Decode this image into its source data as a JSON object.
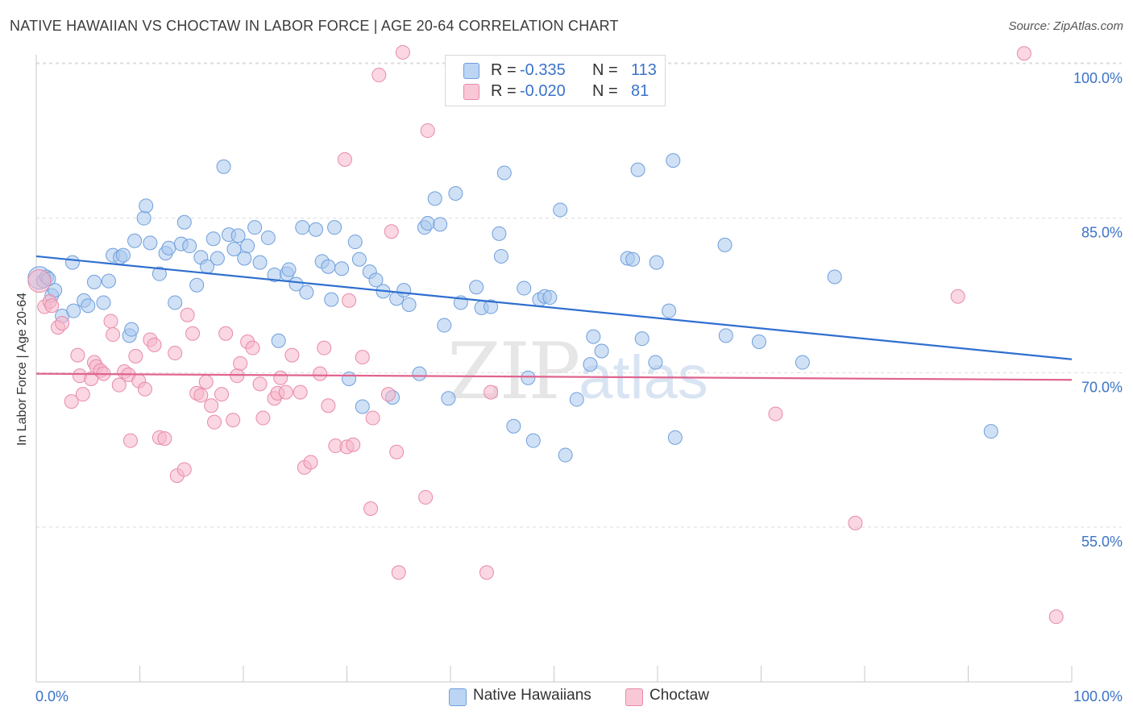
{
  "title": "NATIVE HAWAIIAN VS CHOCTAW IN LABOR FORCE | AGE 20-64 CORRELATION CHART",
  "source": "Source: ZipAtlas.com",
  "watermark": {
    "zip": "ZIP",
    "atlas": "atlas"
  },
  "legend_top": {
    "rows": [
      {
        "r_label": "R =",
        "r_value": "-0.335",
        "n_label": "N =",
        "n_value": "113"
      },
      {
        "r_label": "R =",
        "r_value": "-0.020",
        "n_label": "N =",
        "n_value": "81"
      }
    ]
  },
  "legend_bottom": {
    "items": [
      "Native Hawaiians",
      "Choctaw"
    ]
  },
  "colors": {
    "blue_fill": "#a9c8ef",
    "blue_stroke": "#6f9fdc",
    "blue_line": "#2f6fd0",
    "pink_fill": "#f5b7cb",
    "pink_stroke": "#e88aa8",
    "pink_line": "#e0648e",
    "tick_label": "#3b73c8",
    "grid": "#dcdcdc"
  },
  "chart_data": {
    "type": "scatter",
    "title": "NATIVE HAWAIIAN VS CHOCTAW IN LABOR FORCE | AGE 20-64 CORRELATION CHART",
    "xlabel": "",
    "ylabel": "In Labor Force | Age 20-64",
    "xlim": [
      0,
      100
    ],
    "ylim": [
      40,
      102
    ],
    "x_tick_labels": [
      "0.0%",
      "100.0%"
    ],
    "y_ticks": [
      55,
      70,
      85,
      100
    ],
    "y_tick_labels": [
      "55.0%",
      "70.0%",
      "85.0%",
      "100.0%"
    ],
    "grid": true,
    "legend_position": "bottom",
    "series": [
      {
        "name": "Native Hawaiians",
        "r": -0.335,
        "n": 113,
        "trend": {
          "x": [
            0,
            100
          ],
          "y": [
            81.3,
            71.3
          ]
        },
        "points": [
          [
            0.3,
            79.2
          ],
          [
            0.7,
            78.9
          ],
          [
            1.0,
            79.3
          ],
          [
            1.2,
            79.1
          ],
          [
            1.5,
            77.5
          ],
          [
            1.8,
            78.0
          ],
          [
            2.5,
            75.5
          ],
          [
            3.5,
            80.7
          ],
          [
            3.6,
            76.0
          ],
          [
            4.6,
            77.0
          ],
          [
            5.0,
            76.5
          ],
          [
            5.6,
            78.8
          ],
          [
            6.5,
            76.8
          ],
          [
            7.0,
            78.9
          ],
          [
            7.4,
            81.4
          ],
          [
            8.1,
            81.2
          ],
          [
            8.4,
            81.4
          ],
          [
            9.0,
            73.6
          ],
          [
            9.2,
            74.2
          ],
          [
            9.5,
            82.8
          ],
          [
            10.4,
            85.0
          ],
          [
            10.6,
            86.2
          ],
          [
            11.0,
            82.6
          ],
          [
            11.9,
            79.6
          ],
          [
            12.5,
            81.6
          ],
          [
            12.8,
            82.1
          ],
          [
            13.4,
            76.8
          ],
          [
            14.0,
            82.5
          ],
          [
            14.3,
            84.6
          ],
          [
            14.8,
            82.3
          ],
          [
            15.5,
            78.5
          ],
          [
            15.9,
            81.2
          ],
          [
            16.5,
            80.3
          ],
          [
            17.1,
            83.0
          ],
          [
            17.5,
            81.1
          ],
          [
            18.1,
            90.0
          ],
          [
            18.6,
            83.4
          ],
          [
            19.1,
            82.0
          ],
          [
            19.5,
            83.3
          ],
          [
            20.1,
            81.1
          ],
          [
            20.4,
            82.3
          ],
          [
            21.1,
            84.1
          ],
          [
            21.6,
            80.7
          ],
          [
            22.4,
            83.1
          ],
          [
            23.0,
            79.5
          ],
          [
            23.4,
            73.1
          ],
          [
            24.2,
            79.6
          ],
          [
            24.4,
            80.0
          ],
          [
            25.1,
            78.6
          ],
          [
            25.7,
            84.1
          ],
          [
            26.1,
            77.8
          ],
          [
            27.0,
            83.9
          ],
          [
            27.6,
            80.8
          ],
          [
            28.2,
            80.3
          ],
          [
            28.5,
            77.1
          ],
          [
            28.8,
            84.1
          ],
          [
            29.5,
            80.1
          ],
          [
            30.2,
            69.4
          ],
          [
            30.8,
            82.7
          ],
          [
            31.2,
            81.0
          ],
          [
            31.5,
            66.7
          ],
          [
            32.2,
            79.8
          ],
          [
            32.8,
            79.0
          ],
          [
            33.5,
            77.9
          ],
          [
            34.4,
            67.6
          ],
          [
            34.8,
            77.2
          ],
          [
            35.5,
            78.0
          ],
          [
            36.0,
            76.6
          ],
          [
            37.0,
            69.9
          ],
          [
            37.5,
            84.1
          ],
          [
            37.8,
            84.5
          ],
          [
            38.5,
            86.9
          ],
          [
            39.0,
            84.4
          ],
          [
            39.4,
            74.6
          ],
          [
            39.8,
            67.5
          ],
          [
            40.5,
            87.4
          ],
          [
            41.0,
            76.8
          ],
          [
            42.5,
            78.3
          ],
          [
            43.0,
            76.3
          ],
          [
            43.9,
            76.4
          ],
          [
            44.7,
            83.5
          ],
          [
            44.9,
            81.3
          ],
          [
            45.2,
            89.4
          ],
          [
            46.1,
            64.8
          ],
          [
            47.1,
            78.2
          ],
          [
            47.5,
            69.5
          ],
          [
            48.0,
            63.4
          ],
          [
            48.6,
            77.1
          ],
          [
            49.1,
            77.4
          ],
          [
            49.6,
            77.3
          ],
          [
            50.6,
            85.8
          ],
          [
            51.1,
            62.0
          ],
          [
            52.2,
            67.4
          ],
          [
            53.5,
            70.8
          ],
          [
            53.8,
            73.5
          ],
          [
            54.6,
            72.1
          ],
          [
            57.1,
            81.1
          ],
          [
            57.6,
            81.0
          ],
          [
            58.1,
            89.7
          ],
          [
            58.5,
            73.3
          ],
          [
            59.8,
            71.0
          ],
          [
            59.9,
            80.7
          ],
          [
            61.1,
            76.0
          ],
          [
            61.5,
            90.6
          ],
          [
            61.7,
            63.7
          ],
          [
            66.5,
            82.4
          ],
          [
            66.6,
            73.6
          ],
          [
            69.8,
            73.0
          ],
          [
            74.0,
            71.0
          ],
          [
            77.1,
            79.3
          ],
          [
            92.2,
            64.3
          ]
        ]
      },
      {
        "name": "Choctaw",
        "r": -0.02,
        "n": 81,
        "trend": {
          "x": [
            0,
            100
          ],
          "y": [
            69.9,
            69.3
          ]
        },
        "points": [
          [
            0.3,
            78.9
          ],
          [
            0.8,
            76.4
          ],
          [
            1.3,
            76.9
          ],
          [
            1.5,
            76.5
          ],
          [
            2.1,
            74.4
          ],
          [
            2.5,
            74.8
          ],
          [
            3.4,
            67.2
          ],
          [
            4.0,
            71.7
          ],
          [
            4.2,
            69.7
          ],
          [
            4.5,
            67.9
          ],
          [
            5.3,
            69.4
          ],
          [
            5.6,
            71.0
          ],
          [
            5.8,
            70.6
          ],
          [
            6.2,
            70.2
          ],
          [
            6.5,
            69.9
          ],
          [
            7.2,
            75.0
          ],
          [
            7.4,
            73.7
          ],
          [
            8.0,
            68.8
          ],
          [
            8.5,
            70.1
          ],
          [
            8.9,
            69.8
          ],
          [
            9.1,
            63.4
          ],
          [
            9.6,
            71.6
          ],
          [
            9.9,
            69.2
          ],
          [
            10.5,
            68.4
          ],
          [
            11.0,
            73.2
          ],
          [
            11.4,
            72.7
          ],
          [
            11.9,
            63.7
          ],
          [
            12.4,
            63.6
          ],
          [
            13.4,
            71.9
          ],
          [
            13.6,
            60.0
          ],
          [
            14.3,
            60.6
          ],
          [
            14.6,
            75.6
          ],
          [
            15.1,
            73.8
          ],
          [
            15.5,
            68.0
          ],
          [
            15.9,
            67.8
          ],
          [
            16.4,
            69.1
          ],
          [
            16.9,
            66.8
          ],
          [
            17.2,
            65.2
          ],
          [
            17.9,
            67.9
          ],
          [
            18.3,
            73.8
          ],
          [
            19.0,
            65.4
          ],
          [
            19.4,
            69.7
          ],
          [
            19.7,
            70.9
          ],
          [
            20.4,
            73.0
          ],
          [
            20.9,
            72.4
          ],
          [
            21.6,
            68.9
          ],
          [
            21.9,
            65.6
          ],
          [
            23.0,
            67.5
          ],
          [
            23.3,
            68.0
          ],
          [
            23.6,
            69.5
          ],
          [
            24.1,
            68.1
          ],
          [
            24.7,
            71.7
          ],
          [
            25.5,
            68.1
          ],
          [
            25.9,
            60.8
          ],
          [
            26.5,
            61.3
          ],
          [
            27.4,
            69.9
          ],
          [
            27.8,
            72.4
          ],
          [
            28.2,
            66.8
          ],
          [
            28.9,
            62.9
          ],
          [
            29.8,
            90.7
          ],
          [
            30.0,
            62.8
          ],
          [
            30.2,
            77.0
          ],
          [
            30.6,
            63.0
          ],
          [
            31.5,
            71.5
          ],
          [
            32.3,
            56.8
          ],
          [
            32.5,
            65.6
          ],
          [
            33.1,
            98.9
          ],
          [
            34.0,
            67.9
          ],
          [
            34.3,
            83.7
          ],
          [
            34.8,
            62.3
          ],
          [
            35.0,
            50.6
          ],
          [
            35.4,
            101.1
          ],
          [
            37.6,
            57.9
          ],
          [
            37.8,
            93.5
          ],
          [
            43.5,
            50.6
          ],
          [
            43.9,
            68.1
          ],
          [
            71.4,
            66.0
          ],
          [
            79.1,
            55.4
          ],
          [
            89.0,
            77.4
          ],
          [
            95.4,
            101.0
          ],
          [
            98.5,
            46.3
          ]
        ]
      }
    ]
  }
}
